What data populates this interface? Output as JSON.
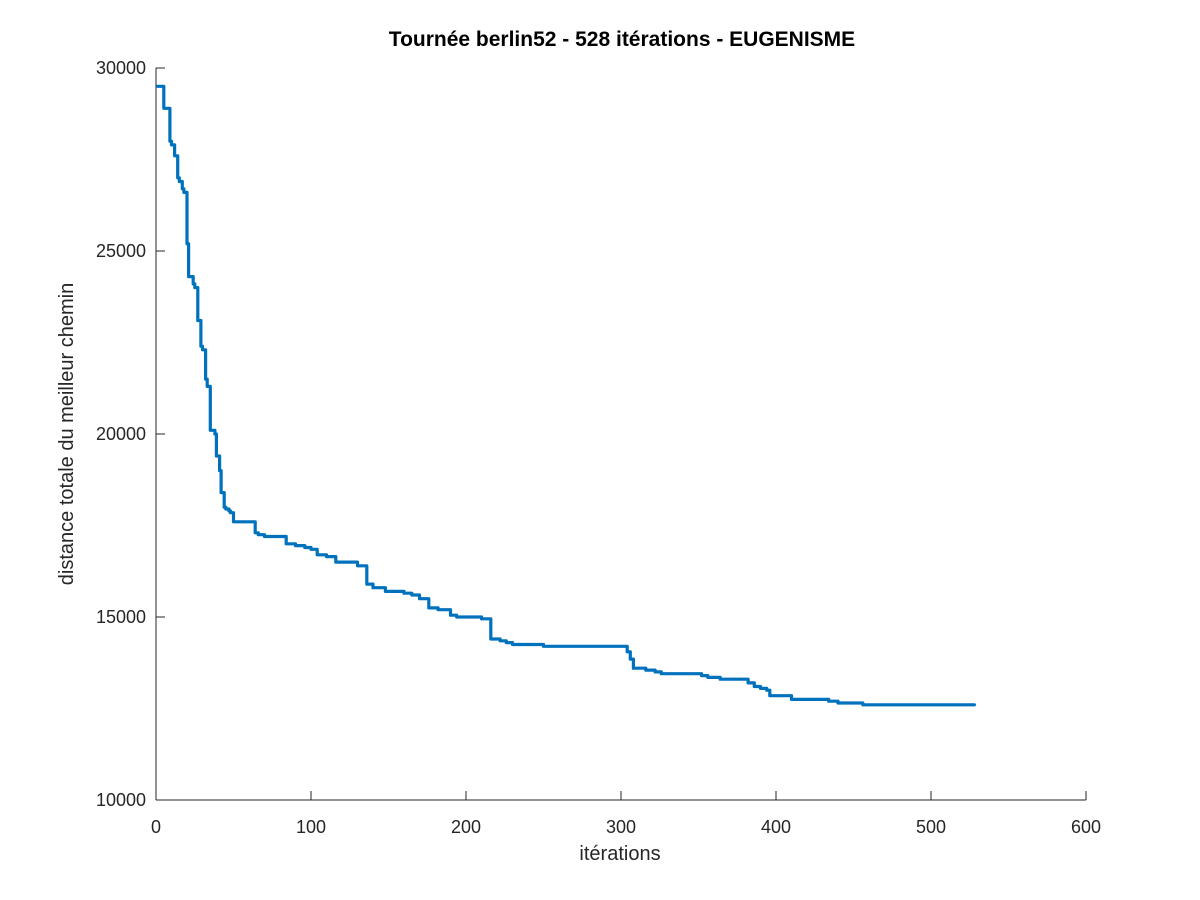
{
  "chart_data": {
    "type": "line",
    "title": "Tournée berlin52 - 528 itérations - EUGENISME",
    "xlabel": "itérations",
    "ylabel": "distance totale du meilleur chemin",
    "xlim": [
      0,
      600
    ],
    "ylim": [
      10000,
      30000
    ],
    "xticks": [
      0,
      100,
      200,
      300,
      400,
      500,
      600
    ],
    "yticks": [
      10000,
      15000,
      20000,
      25000,
      30000
    ],
    "xtick_labels": [
      "0",
      "100",
      "200",
      "300",
      "400",
      "500",
      "600"
    ],
    "ytick_labels": [
      "10000",
      "15000",
      "20000",
      "25000",
      "30000"
    ],
    "grid": false,
    "legend": "none",
    "series": [
      {
        "color": "#0072bd",
        "x": [
          1,
          3,
          5,
          7,
          9,
          10,
          12,
          14,
          15,
          17,
          18,
          20,
          21,
          22,
          24,
          25,
          27,
          29,
          30,
          32,
          33,
          35,
          36,
          38,
          39,
          41,
          42,
          44,
          45,
          47,
          48,
          50,
          51,
          53,
          54,
          56,
          58,
          60,
          62,
          64,
          66,
          70,
          76,
          78,
          80,
          84,
          90,
          96,
          100,
          104,
          110,
          116,
          120,
          124,
          130,
          136,
          140,
          144,
          148,
          150,
          152,
          154,
          156,
          160,
          165,
          170,
          176,
          182,
          186,
          190,
          194,
          198,
          202,
          206,
          210,
          216,
          222,
          226,
          228,
          230,
          236,
          240,
          250,
          260,
          270,
          280,
          290,
          300,
          304,
          306,
          308,
          310,
          312,
          316,
          322,
          326,
          330,
          336,
          346,
          352,
          356,
          364,
          372,
          378,
          382,
          386,
          390,
          394,
          396,
          398,
          404,
          410,
          418,
          424,
          434,
          440,
          446,
          448,
          456,
          466,
          476,
          480,
          488,
          500,
          510,
          520,
          528
        ],
        "values": [
          29500,
          29500,
          28900,
          28900,
          28000,
          27900,
          27600,
          27000,
          26900,
          26700,
          26600,
          25200,
          24300,
          24300,
          24100,
          24000,
          23100,
          22400,
          22300,
          21500,
          21300,
          20100,
          20100,
          20000,
          19400,
          19000,
          18400,
          18000,
          17950,
          17900,
          17850,
          17600,
          17600,
          17600,
          17600,
          17600,
          17600,
          17600,
          17600,
          17300,
          17250,
          17200,
          17200,
          17200,
          17200,
          17000,
          16950,
          16900,
          16850,
          16700,
          16650,
          16500,
          16500,
          16500,
          16400,
          15900,
          15800,
          15800,
          15700,
          15700,
          15700,
          15700,
          15700,
          15650,
          15600,
          15500,
          15250,
          15200,
          15200,
          15050,
          15000,
          15000,
          15000,
          15000,
          14950,
          14400,
          14350,
          14300,
          14300,
          14250,
          14250,
          14250,
          14200,
          14200,
          14200,
          14200,
          14200,
          14200,
          14050,
          13850,
          13600,
          13600,
          13600,
          13550,
          13500,
          13450,
          13450,
          13450,
          13450,
          13400,
          13350,
          13300,
          13300,
          13300,
          13200,
          13100,
          13050,
          13000,
          12850,
          12850,
          12850,
          12750,
          12750,
          12750,
          12700,
          12650,
          12650,
          12650,
          12600,
          12600,
          12600,
          12600,
          12600,
          12600,
          12600,
          12600,
          12600
        ]
      }
    ]
  }
}
